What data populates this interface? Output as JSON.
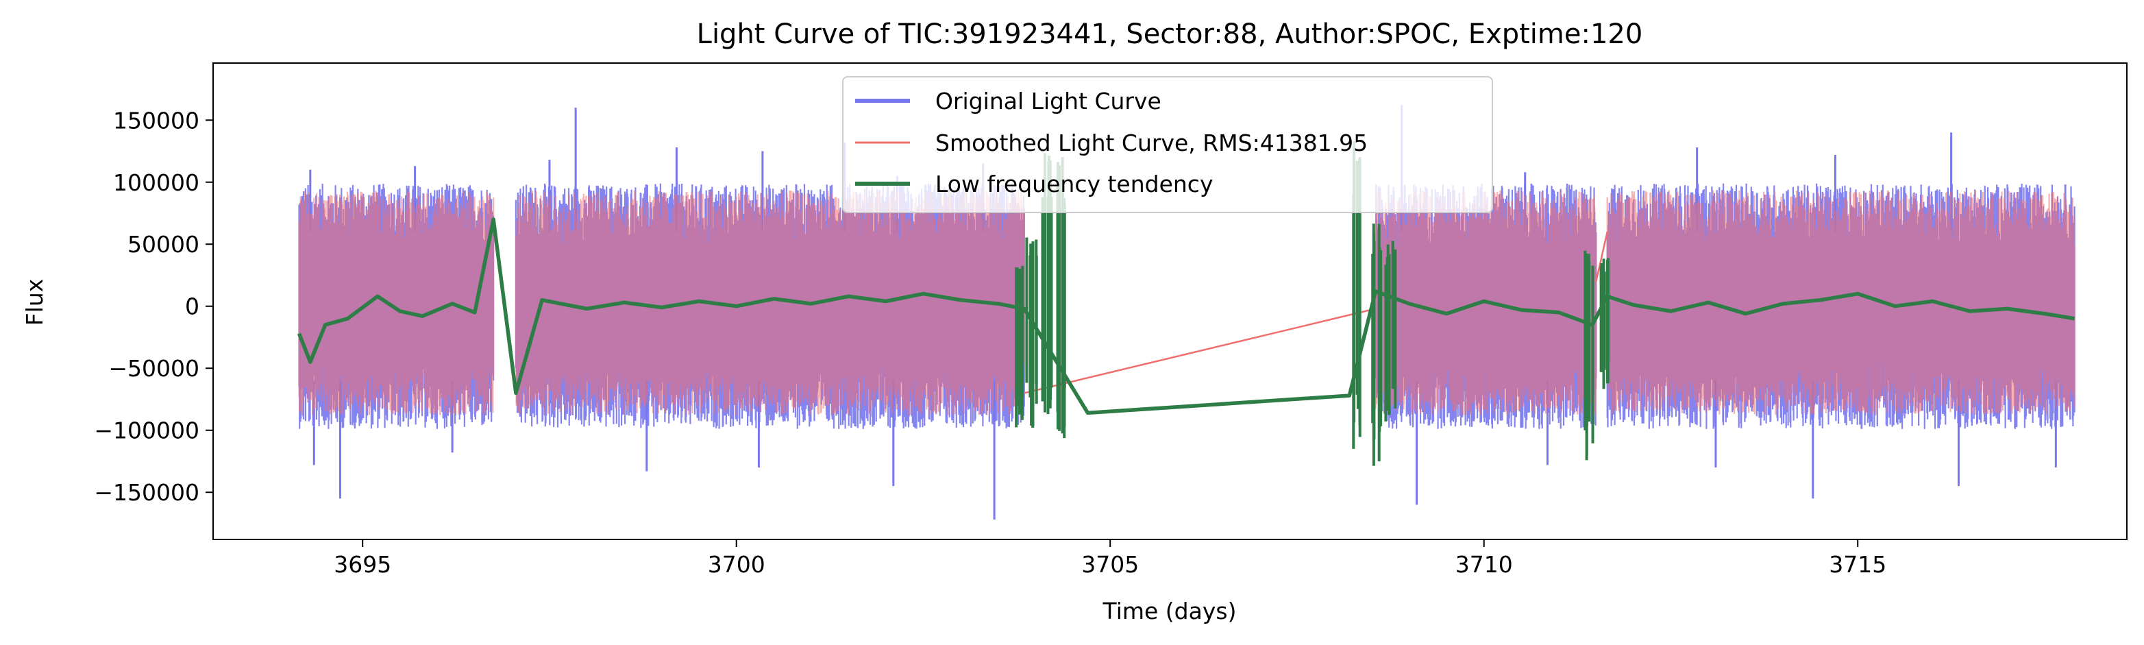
{
  "chart_data": {
    "type": "line",
    "title": "Light Curve of TIC:391923441, Sector:88, Author:SPOC, Exptime:120",
    "xlabel": "Time (days)",
    "ylabel": "Flux",
    "xlim": [
      3693.0,
      3718.6
    ],
    "ylim": [
      -188000,
      196000
    ],
    "xticks": [
      3695,
      3700,
      3705,
      3710,
      3715
    ],
    "yticks": [
      -150000,
      -100000,
      -50000,
      0,
      50000,
      100000,
      150000
    ],
    "xtick_labels": [
      "3695",
      "3700",
      "3705",
      "3710",
      "3715"
    ],
    "ytick_labels": [
      "−150000",
      "−100000",
      "−50000",
      "0",
      "50000",
      "100000",
      "150000"
    ],
    "grid": false,
    "legend_position": "top-center",
    "series": [
      {
        "name": "Original Light Curve",
        "color": "#7777ee",
        "style": "band",
        "segments": [
          [
            3694.15,
            3696.75
          ],
          [
            3697.05,
            3703.85
          ],
          [
            3708.55,
            3711.5
          ],
          [
            3711.65,
            3717.9
          ]
        ],
        "typical_range": [
          -90000,
          90000
        ],
        "peaks": [
          [
            3694.3,
            110000
          ],
          [
            3695.7,
            113000
          ],
          [
            3697.5,
            118000
          ],
          [
            3697.85,
            160000
          ],
          [
            3699.2,
            128000
          ],
          [
            3700.35,
            125000
          ],
          [
            3701.45,
            132000
          ],
          [
            3702.15,
            105000
          ],
          [
            3703.3,
            115000
          ],
          [
            3708.9,
            162000
          ],
          [
            3710.55,
            108000
          ],
          [
            3712.85,
            128000
          ],
          [
            3714.7,
            122000
          ],
          [
            3716.25,
            140000
          ]
        ],
        "troughs": [
          [
            3694.35,
            -128000
          ],
          [
            3694.7,
            -155000
          ],
          [
            3696.2,
            -118000
          ],
          [
            3698.8,
            -133000
          ],
          [
            3700.3,
            -130000
          ],
          [
            3702.1,
            -145000
          ],
          [
            3703.45,
            -172000
          ],
          [
            3709.1,
            -160000
          ],
          [
            3710.85,
            -128000
          ],
          [
            3713.1,
            -130000
          ],
          [
            3714.4,
            -155000
          ],
          [
            3716.35,
            -145000
          ],
          [
            3717.65,
            -130000
          ]
        ]
      },
      {
        "name": "Smoothed Light Curve, RMS:41381.95",
        "color": "#f07070",
        "style": "band",
        "segments": [
          [
            3694.15,
            3696.75
          ],
          [
            3697.05,
            3703.85
          ],
          [
            3708.55,
            3711.5
          ],
          [
            3711.65,
            3717.9
          ]
        ],
        "typical_range": [
          -80000,
          85000
        ],
        "connectors": [
          [
            3703.85,
            -70000,
            3708.55,
            -2000
          ],
          [
            3711.5,
            20000,
            3711.65,
            60000
          ]
        ]
      },
      {
        "name": "Low frequency tendency",
        "color": "#2e7d46",
        "x": [
          3694.15,
          3694.3,
          3694.5,
          3694.8,
          3695.2,
          3695.5,
          3695.8,
          3696.2,
          3696.5,
          3696.75,
          3697.05,
          3697.4,
          3698.0,
          3698.5,
          3699.0,
          3699.5,
          3700.0,
          3700.5,
          3701.0,
          3701.5,
          3702.0,
          3702.5,
          3703.0,
          3703.5,
          3703.85,
          3704.7,
          3708.2,
          3708.55,
          3709.0,
          3709.5,
          3710.0,
          3710.5,
          3711.0,
          3711.45,
          3711.65,
          3712.0,
          3712.5,
          3713.0,
          3713.5,
          3714.0,
          3714.5,
          3715.0,
          3715.5,
          3716.0,
          3716.5,
          3717.0,
          3717.5,
          3717.9
        ],
        "values": [
          -22000,
          -45000,
          -15000,
          -10000,
          8000,
          -4000,
          -8000,
          2000,
          -5000,
          70000,
          -70000,
          5000,
          -2000,
          3000,
          -1000,
          4000,
          0,
          6000,
          2000,
          8000,
          4000,
          10000,
          5000,
          2000,
          -2000,
          -86000,
          -72000,
          12000,
          2000,
          -6000,
          4000,
          -3000,
          -5000,
          -15000,
          8000,
          1000,
          -4000,
          3000,
          -6000,
          2000,
          5000,
          10000,
          0,
          4000,
          -4000,
          -2000,
          -6000,
          -10000
        ],
        "spikes": [
          [
            3703.8,
            -108000,
            38000
          ],
          [
            3703.95,
            -100000,
            60000
          ],
          [
            3704.15,
            -90000,
            145000
          ],
          [
            3704.35,
            -108000,
            128000
          ],
          [
            3708.3,
            -118000,
            135000
          ],
          [
            3708.55,
            -130000,
            70000
          ],
          [
            3708.75,
            -95000,
            55000
          ],
          [
            3711.42,
            -132000,
            50000
          ],
          [
            3711.6,
            -70000,
            40000
          ]
        ]
      }
    ]
  }
}
